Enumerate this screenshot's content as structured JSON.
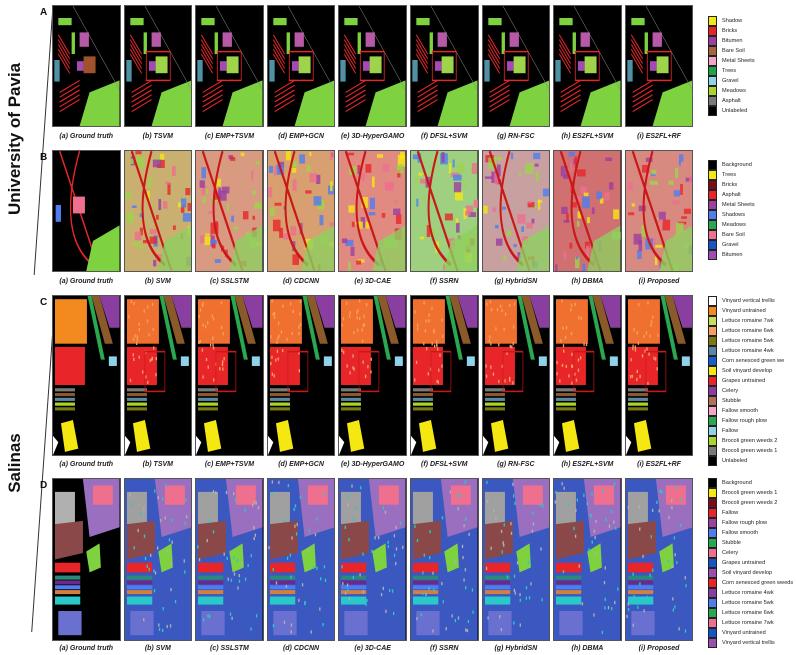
{
  "groups": [
    {
      "label": "University of Pavia"
    },
    {
      "label": "Salinas"
    }
  ],
  "rows": [
    {
      "letter": "A",
      "captions": [
        "(a) Ground truth",
        "(b) TSVM",
        "(c) EMP+TSVM",
        "(d) EMP+GCN",
        "(e) 3D-HyperGAMO",
        "(f) DFSL+SVM",
        "(g) RN-FSC",
        "(h) ES2FL+SVM",
        "(i) ES2FL+RF"
      ],
      "legend": [
        {
          "label": "Shadow",
          "color": "#f5e712"
        },
        {
          "label": "Bricks",
          "color": "#e8262a"
        },
        {
          "label": "Bitumen",
          "color": "#9b3fa0"
        },
        {
          "label": "Bare Soil",
          "color": "#a8643f"
        },
        {
          "label": "Metal Sheets",
          "color": "#f2a6c6"
        },
        {
          "label": "Trees",
          "color": "#1fa34a"
        },
        {
          "label": "Gravel",
          "color": "#8fd3e8"
        },
        {
          "label": "Meadows",
          "color": "#a8d62a"
        },
        {
          "label": "Asphalt",
          "color": "#7a7a7a"
        },
        {
          "label": "Unlabeled",
          "color": "#000000"
        }
      ]
    },
    {
      "letter": "B",
      "captions": [
        "(a) Ground truth",
        "(b) SVM",
        "(c) SSLSTM",
        "(d) CDCNN",
        "(e) 3D-CAE",
        "(f) SSRN",
        "(g) HybridSN",
        "(h) DBMA",
        "(i) Proposed"
      ],
      "legend": [
        {
          "label": "Background",
          "color": "#000000"
        },
        {
          "label": "Trees",
          "color": "#f5e712"
        },
        {
          "label": "Bricks",
          "color": "#7a0e18"
        },
        {
          "label": "Asphalt",
          "color": "#e8262a"
        },
        {
          "label": "Metal Sheets",
          "color": "#9b3fa0"
        },
        {
          "label": "Shadows",
          "color": "#4f7df0"
        },
        {
          "label": "Meadows",
          "color": "#2aa84f"
        },
        {
          "label": "Bare Soil",
          "color": "#ee6f8e"
        },
        {
          "label": "Gravel",
          "color": "#1555c8"
        },
        {
          "label": "Bitumen",
          "color": "#9b4fb0"
        }
      ]
    },
    {
      "letter": "C",
      "captions": [
        "(a) Ground truth",
        "(b) TSVM",
        "(c) EMP+TSVM",
        "(d) EMP+GCN",
        "(e) 3D-HyperGAMO",
        "(f) DFSL+SVM",
        "(g) RN-FSC",
        "(h) ES2FL+SVM",
        "(i) ES2FL+RF"
      ],
      "legend": [
        {
          "label": "Vinyard vertical trellis",
          "color": "#ffffff"
        },
        {
          "label": "Vinyard untrained",
          "color": "#f28a1f"
        },
        {
          "label": "Lettuce romaine 7wk",
          "color": "#c6e05a"
        },
        {
          "label": "Lettuce romaine 6wk",
          "color": "#f5a060"
        },
        {
          "label": "Lettuce romaine 5wk",
          "color": "#7a7a12"
        },
        {
          "label": "Lettuce romaine 4wk",
          "color": "#5b86a6"
        },
        {
          "label": "Corn senesced green we",
          "color": "#1560c8"
        },
        {
          "label": "Soil vinyard develop",
          "color": "#f5e712"
        },
        {
          "label": "Grapes untrained",
          "color": "#e8262a"
        },
        {
          "label": "Celery",
          "color": "#8a3fa0"
        },
        {
          "label": "Stubble",
          "color": "#b0705a"
        },
        {
          "label": "Fallow smooth",
          "color": "#f5a6c6"
        },
        {
          "label": "Fallow rough plow",
          "color": "#2aa84f"
        },
        {
          "label": "Fallow",
          "color": "#8fd3e8"
        },
        {
          "label": "Brocoli green weeds 2",
          "color": "#a8d62a"
        },
        {
          "label": "Brocoli green weeds 1",
          "color": "#7a7a7a"
        },
        {
          "label": "Unlabeled",
          "color": "#000000"
        }
      ]
    },
    {
      "letter": "D",
      "captions": [
        "(a) Ground truth",
        "(b) SVM",
        "(c) SSLSTM",
        "(d) CDCNN",
        "(e) 3D-CAE",
        "(f) SSRN",
        "(g) HybridSN",
        "(h) DBMA",
        "(i) Proposed"
      ],
      "legend": [
        {
          "label": "Background",
          "color": "#000000"
        },
        {
          "label": "Brocoli green weeds 1",
          "color": "#f5e712"
        },
        {
          "label": "Brocoli green weeds 2",
          "color": "#7a0e18"
        },
        {
          "label": "Fallow",
          "color": "#e8262a"
        },
        {
          "label": "Fallow rough plow",
          "color": "#9b3fa0"
        },
        {
          "label": "Fallow smooth",
          "color": "#4f7df0"
        },
        {
          "label": "Stubble",
          "color": "#2aa84f"
        },
        {
          "label": "Celery",
          "color": "#ee6f8e"
        },
        {
          "label": "Grapes untrained",
          "color": "#1555c8"
        },
        {
          "label": "Soil vinyard develop",
          "color": "#9b4fb0"
        },
        {
          "label": "Corn senesced green weeds",
          "color": "#e8262a"
        },
        {
          "label": "Lettuce romaine 4wk",
          "color": "#8a3fa0"
        },
        {
          "label": "Lettuce romaine 5wk",
          "color": "#4f7df0"
        },
        {
          "label": "Lettuce romaine 6wk",
          "color": "#2aa84f"
        },
        {
          "label": "Lettuce romaine 7wk",
          "color": "#ee6f8e"
        },
        {
          "label": "Vinyard untrained",
          "color": "#1555c8"
        },
        {
          "label": "Vinyard vertical trellis",
          "color": "#9b4fb0"
        }
      ]
    }
  ]
}
